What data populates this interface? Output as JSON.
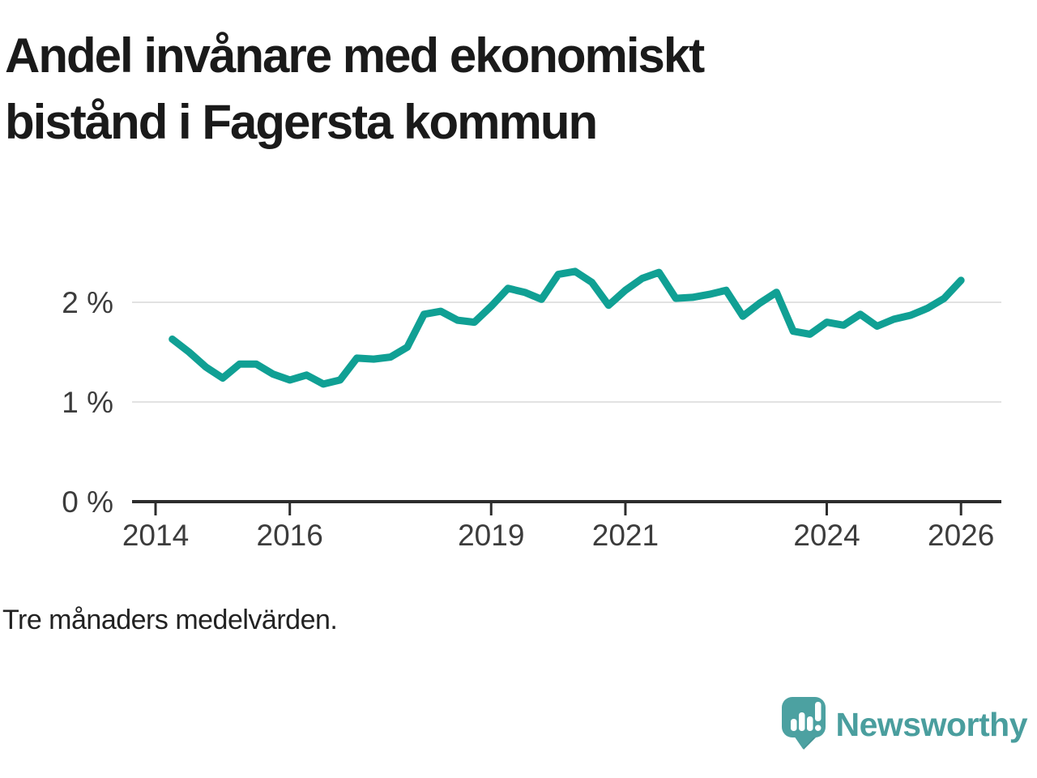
{
  "title": "Andel invånare med ekonomiskt bistånd i Fagersta kommun",
  "footnote": "Tre månaders medelvärden.",
  "branding": {
    "logo_text": "Newsworthy",
    "logo_icon": "newsworthy-speech-bubble-bars-icon",
    "icon_color": "#4CA1A1",
    "text_color": "#4A9E9E"
  },
  "chart_data": {
    "type": "line",
    "title": "Andel invånare med ekonomiskt bistånd i Fagersta kommun",
    "subtitle": "Tre månaders medelvärden.",
    "unit": "%",
    "line_color": "#10A094",
    "grid_color": "#e2e2e2",
    "axis_color": "#2d2d2d",
    "tick_label_color": "#3c3c3c",
    "grid": true,
    "legend_position": "none",
    "xlim": [
      2013.6,
      2026.55
    ],
    "ylim": [
      0,
      2.45
    ],
    "xticks": [
      2014,
      2016,
      2019,
      2021,
      2024,
      2026
    ],
    "xtick_labels": [
      "2014",
      "2016",
      "2019",
      "2021",
      "2024",
      "2026"
    ],
    "yticks": [
      0,
      1,
      2
    ],
    "ytick_labels": [
      "0 %",
      "1 %",
      "2 %"
    ],
    "x": [
      2014.25,
      2014.5,
      2014.75,
      2015.0,
      2015.25,
      2015.5,
      2015.75,
      2016.0,
      2016.25,
      2016.5,
      2016.75,
      2017.0,
      2017.25,
      2017.5,
      2017.75,
      2018.0,
      2018.25,
      2018.5,
      2018.75,
      2019.0,
      2019.25,
      2019.5,
      2019.75,
      2020.0,
      2020.25,
      2020.5,
      2020.75,
      2021.0,
      2021.25,
      2021.5,
      2021.75,
      2022.0,
      2022.25,
      2022.5,
      2022.75,
      2023.0,
      2023.25,
      2023.5,
      2023.75,
      2024.0,
      2024.25,
      2024.5,
      2024.75,
      2025.0,
      2025.25,
      2025.5,
      2025.75,
      2026.0
    ],
    "values": [
      1.63,
      1.5,
      1.35,
      1.24,
      1.38,
      1.38,
      1.28,
      1.22,
      1.27,
      1.18,
      1.22,
      1.44,
      1.43,
      1.45,
      1.55,
      1.88,
      1.91,
      1.82,
      1.8,
      1.96,
      2.14,
      2.1,
      2.03,
      2.28,
      2.31,
      2.2,
      1.97,
      2.12,
      2.24,
      2.3,
      2.04,
      2.05,
      2.08,
      2.12,
      1.86,
      1.99,
      2.1,
      1.71,
      1.68,
      1.8,
      1.77,
      1.88,
      1.76,
      1.83,
      1.87,
      1.94,
      2.04,
      2.22
    ]
  }
}
